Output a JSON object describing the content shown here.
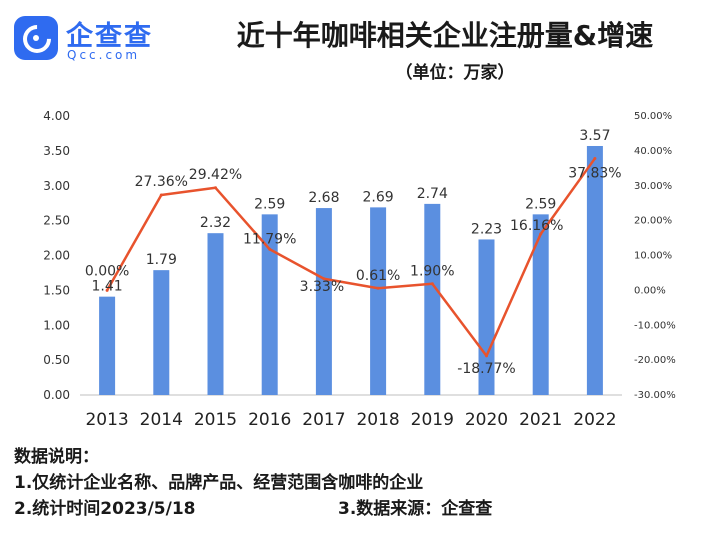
{
  "logo": {
    "name": "企查查",
    "domain": "Qcc.com"
  },
  "header": {
    "title": "近十年咖啡相关企业注册量&增速",
    "unit": "（单位：万家）"
  },
  "chart_data": {
    "type": "bar",
    "categories": [
      "2013",
      "2014",
      "2015",
      "2016",
      "2017",
      "2018",
      "2019",
      "2020",
      "2021",
      "2022"
    ],
    "series": [
      {
        "type": "bar",
        "axis": "left",
        "color": "#5b8fe0",
        "values": [
          1.41,
          1.79,
          2.32,
          2.59,
          2.68,
          2.69,
          2.74,
          2.23,
          2.59,
          3.57
        ],
        "labels": [
          "1.41",
          "1.79",
          "2.32",
          "2.59",
          "2.68",
          "2.69",
          "2.74",
          "2.23",
          "2.59",
          "3.57"
        ]
      },
      {
        "type": "line",
        "axis": "right",
        "color": "#e8532d",
        "values": [
          0.0,
          27.36,
          29.42,
          11.79,
          3.33,
          0.61,
          1.9,
          -18.77,
          16.16,
          37.83
        ],
        "labels": [
          "0.00%",
          "27.36%",
          "29.42%",
          "11.79%",
          "3.33%",
          "0.61%",
          "1.90%",
          "-18.77%",
          "16.16%",
          "37.83%"
        ]
      }
    ],
    "y_left": {
      "ylim": [
        0,
        4
      ],
      "ticks": [
        "0.00",
        "0.50",
        "1.00",
        "1.50",
        "2.00",
        "2.50",
        "3.00",
        "3.50",
        "4.00"
      ]
    },
    "y_right": {
      "ylim": [
        -30,
        50
      ],
      "ticks": [
        "-30.00%",
        "-20.00%",
        "-10.00%",
        "0.00%",
        "10.00%",
        "20.00%",
        "30.00%",
        "40.00%",
        "50.00%"
      ]
    },
    "grid": false,
    "legend": "none"
  },
  "notes": {
    "heading": "数据说明：",
    "line1": "1.仅统计企业名称、品牌产品、经营范围含咖啡的企业",
    "line2": "2.统计时间2023/5/18",
    "source": "3.数据来源：企查查"
  }
}
